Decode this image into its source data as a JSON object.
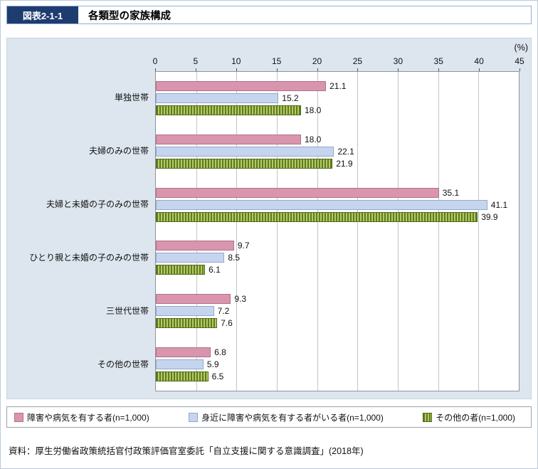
{
  "header": {
    "figure_label": "図表2-1-1",
    "title": "各類型の家族構成"
  },
  "chart_data": {
    "type": "bar",
    "orientation": "horizontal",
    "title": "各類型の家族構成",
    "unit_label": "(%)",
    "xlim": [
      0,
      45
    ],
    "xticks": [
      0,
      5,
      10,
      15,
      20,
      25,
      30,
      35,
      40,
      45
    ],
    "grid": true,
    "legend_position": "bottom",
    "categories": [
      "単独世帯",
      "夫婦のみの世帯",
      "夫婦と未婚の子のみの世帯",
      "ひとり親と未婚の子のみの世帯",
      "三世代世帯",
      "その他の世帯"
    ],
    "series": [
      {
        "name": "障害や病気を有する者(n=1,000)",
        "color": "#d995ad",
        "border_color": "#b27189",
        "values": [
          21.1,
          18.0,
          35.1,
          9.7,
          9.3,
          6.8
        ]
      },
      {
        "name": "身近に障害や病気を有する者がいる者(n=1,000)",
        "color": "#c6d5ee",
        "border_color": "#93a7cc",
        "values": [
          15.2,
          22.1,
          41.1,
          8.5,
          7.2,
          5.9
        ]
      },
      {
        "name": "その他の者(n=1,000)",
        "color": "#b5c966",
        "stripe_color": "#5f7c1f",
        "border_color": "#4f6a18",
        "pattern": "vertical-stripes",
        "values": [
          18.0,
          21.9,
          39.9,
          6.1,
          7.6,
          6.5
        ]
      }
    ]
  },
  "source": "資料：厚生労働省政策統括官付政策評価官室委託「自立支援に関する意識調査」(2018年)"
}
